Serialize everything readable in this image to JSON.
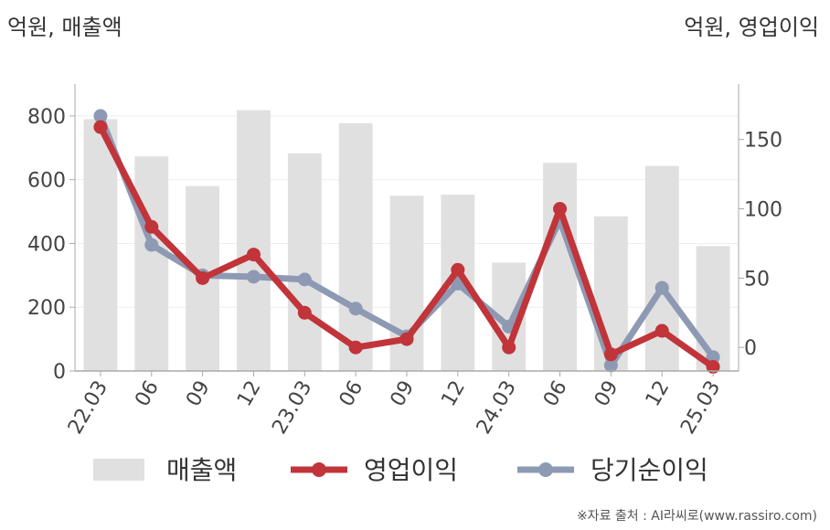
{
  "units": {
    "left": "억원, 매출액",
    "right": "억원, 영업이익"
  },
  "source": "※자료 출처 : AI라씨로(www.rassiro.com)",
  "colors": {
    "bar": "#e0e0e0",
    "operating": "#c0343a",
    "net": "#8e9ab3",
    "axis": "#aaaaaa",
    "grid": "#eeeeee"
  },
  "chart_data": {
    "type": "bar+line",
    "categories": [
      "22.03",
      "06",
      "09",
      "12",
      "23.03",
      "06",
      "09",
      "12",
      "24.03",
      "06",
      "09",
      "12",
      "25.03"
    ],
    "left_axis": {
      "ylim": [
        0,
        900
      ],
      "ticks": [
        0,
        200,
        400,
        600,
        800
      ]
    },
    "right_axis": {
      "ylim": [
        -17,
        190
      ],
      "ticks": [
        0,
        50,
        100,
        150
      ]
    },
    "series": [
      {
        "name": "매출액",
        "kind": "bar",
        "axis": "left",
        "values": [
          790,
          673,
          580,
          818,
          683,
          777,
          550,
          553,
          340,
          653,
          485,
          643,
          392
        ]
      },
      {
        "name": "영업이익",
        "kind": "line",
        "axis": "right",
        "values": [
          159,
          87,
          50,
          67,
          25,
          0,
          6,
          56,
          0,
          100,
          -5,
          12,
          -14
        ]
      },
      {
        "name": "당기순이익",
        "kind": "line",
        "axis": "right",
        "values": [
          167,
          74,
          52,
          51,
          49,
          28,
          8,
          46,
          15,
          92,
          -13,
          43,
          -7
        ]
      }
    ],
    "legend_position": "bottom",
    "grid": true
  }
}
